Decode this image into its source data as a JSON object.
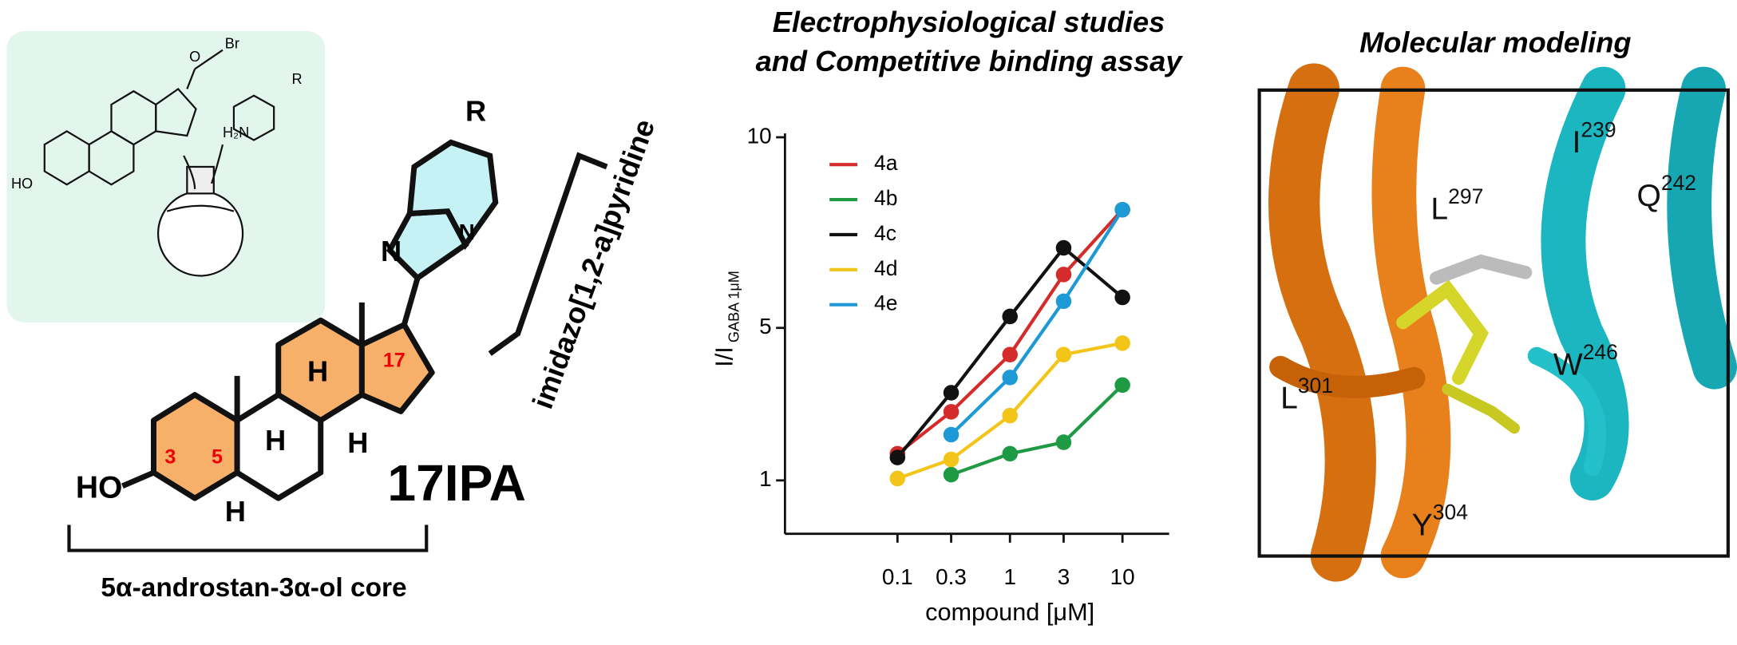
{
  "chart_data": {
    "type": "line",
    "title": [
      "Electrophysiological studies",
      "and Competitive binding assay"
    ],
    "x_label": "compound [μM]",
    "y_label": {
      "main": "I/I",
      "sub": "GABA 1μM"
    },
    "x": [
      0.1,
      0.3,
      1,
      3,
      10
    ],
    "log_x": true,
    "xlim": [
      0.01,
      26
    ],
    "xticks": [
      0.1,
      0.3,
      1,
      3,
      10
    ],
    "ylim": [
      -0.4,
      10.1
    ],
    "yticks": [
      1,
      5,
      10
    ],
    "legend": "top-left",
    "series": [
      {
        "name": "4a",
        "color": "#d42b2b",
        "values": [
          1.7,
          2.8,
          4.3,
          6.4,
          8.1
        ]
      },
      {
        "name": "4b",
        "color": "#1e9a44",
        "values": [
          null,
          1.15,
          1.7,
          2.0,
          3.5
        ]
      },
      {
        "name": "4c",
        "color": "#111111",
        "values": [
          1.6,
          3.3,
          5.3,
          7.1,
          5.8
        ]
      },
      {
        "name": "4d",
        "color": "#f2c518",
        "values": [
          1.05,
          1.55,
          2.7,
          4.3,
          4.6
        ]
      },
      {
        "name": "4e",
        "color": "#1d9ad6",
        "values": [
          null,
          2.2,
          3.7,
          5.7,
          8.1
        ]
      }
    ]
  },
  "chemistry": {
    "compound": "17IPA",
    "core": "5α-androstan-3α-ol core",
    "fragment": "imidazo[1,2-a]pyridine",
    "ho": "HO",
    "h": "H",
    "positions": [
      "3",
      "5",
      "17"
    ],
    "r": "R",
    "n": "N",
    "br": "Br",
    "o": "O",
    "amine": "H₂N"
  },
  "modeling": {
    "title": "Molecular modeling",
    "residues": [
      {
        "letter": "I",
        "num": "239"
      },
      {
        "letter": "Q",
        "num": "242"
      },
      {
        "letter": "L",
        "num": "297"
      },
      {
        "letter": "W",
        "num": "246"
      },
      {
        "letter": "L",
        "num": "301"
      },
      {
        "letter": "Y",
        "num": "304"
      }
    ]
  }
}
